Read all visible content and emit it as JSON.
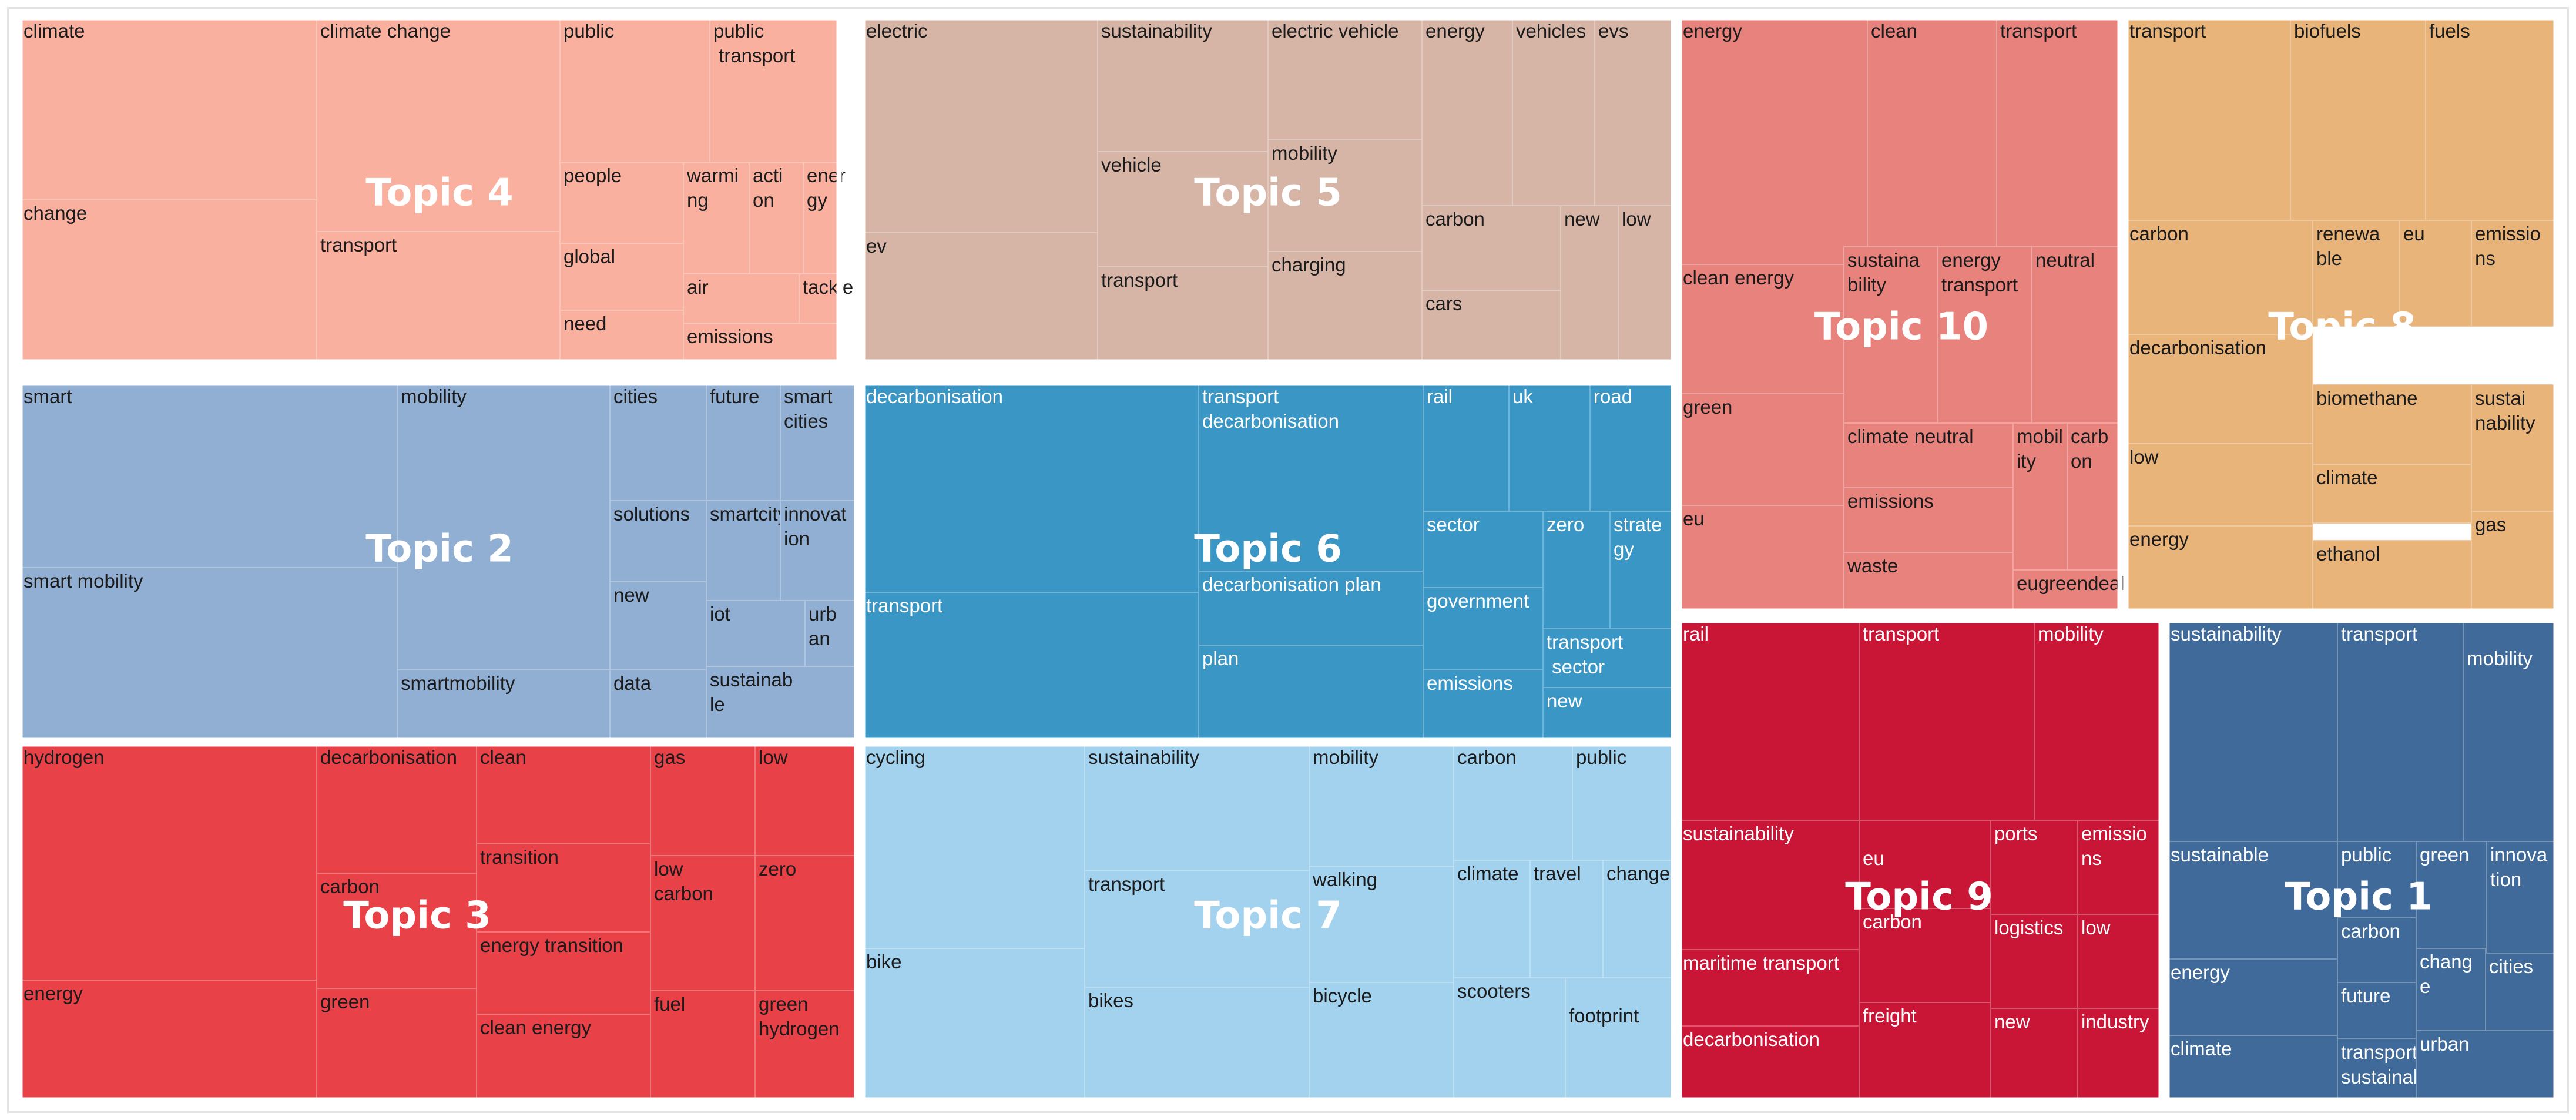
{
  "chart_data": {
    "type": "treemap",
    "topics": [
      {
        "name": "Topic 4",
        "color": "#fab09e",
        "terms": [
          "climate",
          "change",
          "climate change",
          "transport",
          "public",
          "people",
          "global",
          "need",
          "public transport",
          "warming",
          "action",
          "energy",
          "air",
          "tackle",
          "emissions"
        ]
      },
      {
        "name": "Topic 5",
        "color": "#d6b5a6",
        "terms": [
          "electric",
          "ev",
          "sustainability",
          "vehicle",
          "transport",
          "electric vehicle",
          "mobility",
          "charging",
          "energy",
          "vehicles",
          "evs",
          "carbon",
          "new",
          "low",
          "cars"
        ]
      },
      {
        "name": "Topic 10",
        "color": "#e8827c",
        "terms": [
          "energy",
          "clean",
          "transport",
          "clean energy",
          "sustainability",
          "energy transport",
          "neutral",
          "green",
          "climate neutral",
          "mobility",
          "carbon",
          "eu",
          "emissions",
          "waste",
          "eugreendeal"
        ]
      },
      {
        "name": "Topic 8",
        "color": "#e8b47a",
        "terms": [
          "transport",
          "biofuels",
          "fuels",
          "carbon",
          "renewable",
          "eu",
          "emissions",
          "decarbonisation",
          "biomethane",
          "sustainability",
          "low",
          "climate",
          "gas",
          "energy",
          "ethanol"
        ]
      },
      {
        "name": "Topic 2",
        "color": "#91afd3",
        "terms": [
          "smart",
          "smart mobility",
          "mobility",
          "smartmobility",
          "cities",
          "future",
          "smart cities",
          "solutions",
          "smartcity",
          "innovation",
          "new",
          "iot",
          "urban",
          "data",
          "sustainable"
        ]
      },
      {
        "name": "Topic 6",
        "color": "#3a96c5",
        "terms": [
          "decarbonisation",
          "transport",
          "transport decarbonisation",
          "decarbonisation plan",
          "plan",
          "rail",
          "uk",
          "road",
          "sector",
          "zero",
          "strategy",
          "government",
          "transport sector",
          "emissions",
          "new"
        ]
      },
      {
        "name": "Topic 3",
        "color": "#e94148",
        "terms": [
          "hydrogen",
          "energy",
          "decarbonisation",
          "carbon",
          "green",
          "clean",
          "transition",
          "energy transition",
          "clean energy",
          "gas",
          "low",
          "low carbon",
          "zero",
          "fuel",
          "green hydrogen"
        ]
      },
      {
        "name": "Topic 7",
        "color": "#a3d2ee",
        "terms": [
          "cycling",
          "bike",
          "sustainability",
          "transport",
          "bikes",
          "mobility",
          "walking",
          "bicycle",
          "carbon",
          "public",
          "climate",
          "travel",
          "change",
          "scooters",
          "footprint"
        ]
      },
      {
        "name": "Topic 9",
        "color": "#c91536",
        "terms": [
          "rail",
          "sustainability",
          "maritime transport",
          "decarbonisation",
          "transport",
          "mobility",
          "eu",
          "carbon",
          "freight",
          "ports",
          "emissions",
          "logistics",
          "low",
          "new",
          "industry"
        ]
      },
      {
        "name": "Topic 1",
        "color": "#3f6a99",
        "terms": [
          "sustainability",
          "sustainable",
          "energy",
          "climate",
          "transport",
          "mobility",
          "public",
          "carbon",
          "future",
          "transport sustainability",
          "green",
          "innovation",
          "change",
          "cities",
          "urban"
        ]
      }
    ]
  }
}
